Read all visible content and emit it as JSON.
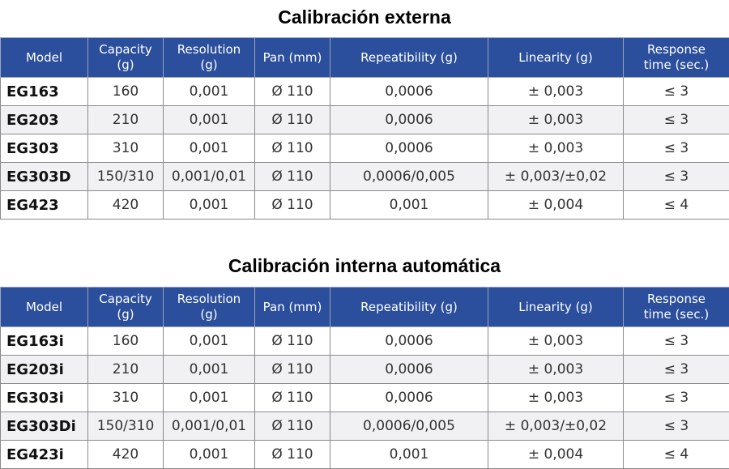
{
  "tables": [
    {
      "title": "Calibración externa",
      "header": [
        "Model",
        "Capacity\n(g)",
        "Resolution\n(g)",
        "Pan (mm)",
        "Repeatibility (g)",
        "Linearity (g)",
        "Response\ntime (sec.)"
      ],
      "rows": [
        [
          "EG163",
          "160",
          "0,001",
          "Ø 110",
          "0,0006",
          "± 0,003",
          "≤ 3"
        ],
        [
          "EG203",
          "210",
          "0,001",
          "Ø 110",
          "0,0006",
          "± 0,003",
          "≤ 3"
        ],
        [
          "EG303",
          "310",
          "0,001",
          "Ø 110",
          "0,0006",
          "± 0,003",
          "≤ 3"
        ],
        [
          "EG303D",
          "150/310",
          "0,001/0,01",
          "Ø 110",
          "0,0006/0,005",
          "± 0,003/±0,02",
          "≤ 3"
        ],
        [
          "EG423",
          "420",
          "0,001",
          "Ø 110",
          "0,001",
          "± 0,004",
          "≤ 4"
        ]
      ]
    },
    {
      "title": "Calibración interna automática",
      "header": [
        "Model",
        "Capacity\n(g)",
        "Resolution\n(g)",
        "Pan (mm)",
        "Repeatibility (g)",
        "Linearity (g)",
        "Response\ntime (sec.)"
      ],
      "rows": [
        [
          "EG163i",
          "160",
          "0,001",
          "Ø 110",
          "0,0006",
          "± 0,003",
          "≤ 3"
        ],
        [
          "EG203i",
          "210",
          "0,001",
          "Ø 110",
          "0,0006",
          "± 0,003",
          "≤ 3"
        ],
        [
          "EG303i",
          "310",
          "0,001",
          "Ø 110",
          "0,0006",
          "± 0,003",
          "≤ 3"
        ],
        [
          "EG303Di",
          "150/310",
          "0,001/0,01",
          "Ø 110",
          "0,0006/0,005",
          "± 0,003/±0,02",
          "≤ 3"
        ],
        [
          "EG423i",
          "420",
          "0,001",
          "Ø 110",
          "0,001",
          "± 0,004",
          "≤ 4"
        ]
      ]
    }
  ]
}
